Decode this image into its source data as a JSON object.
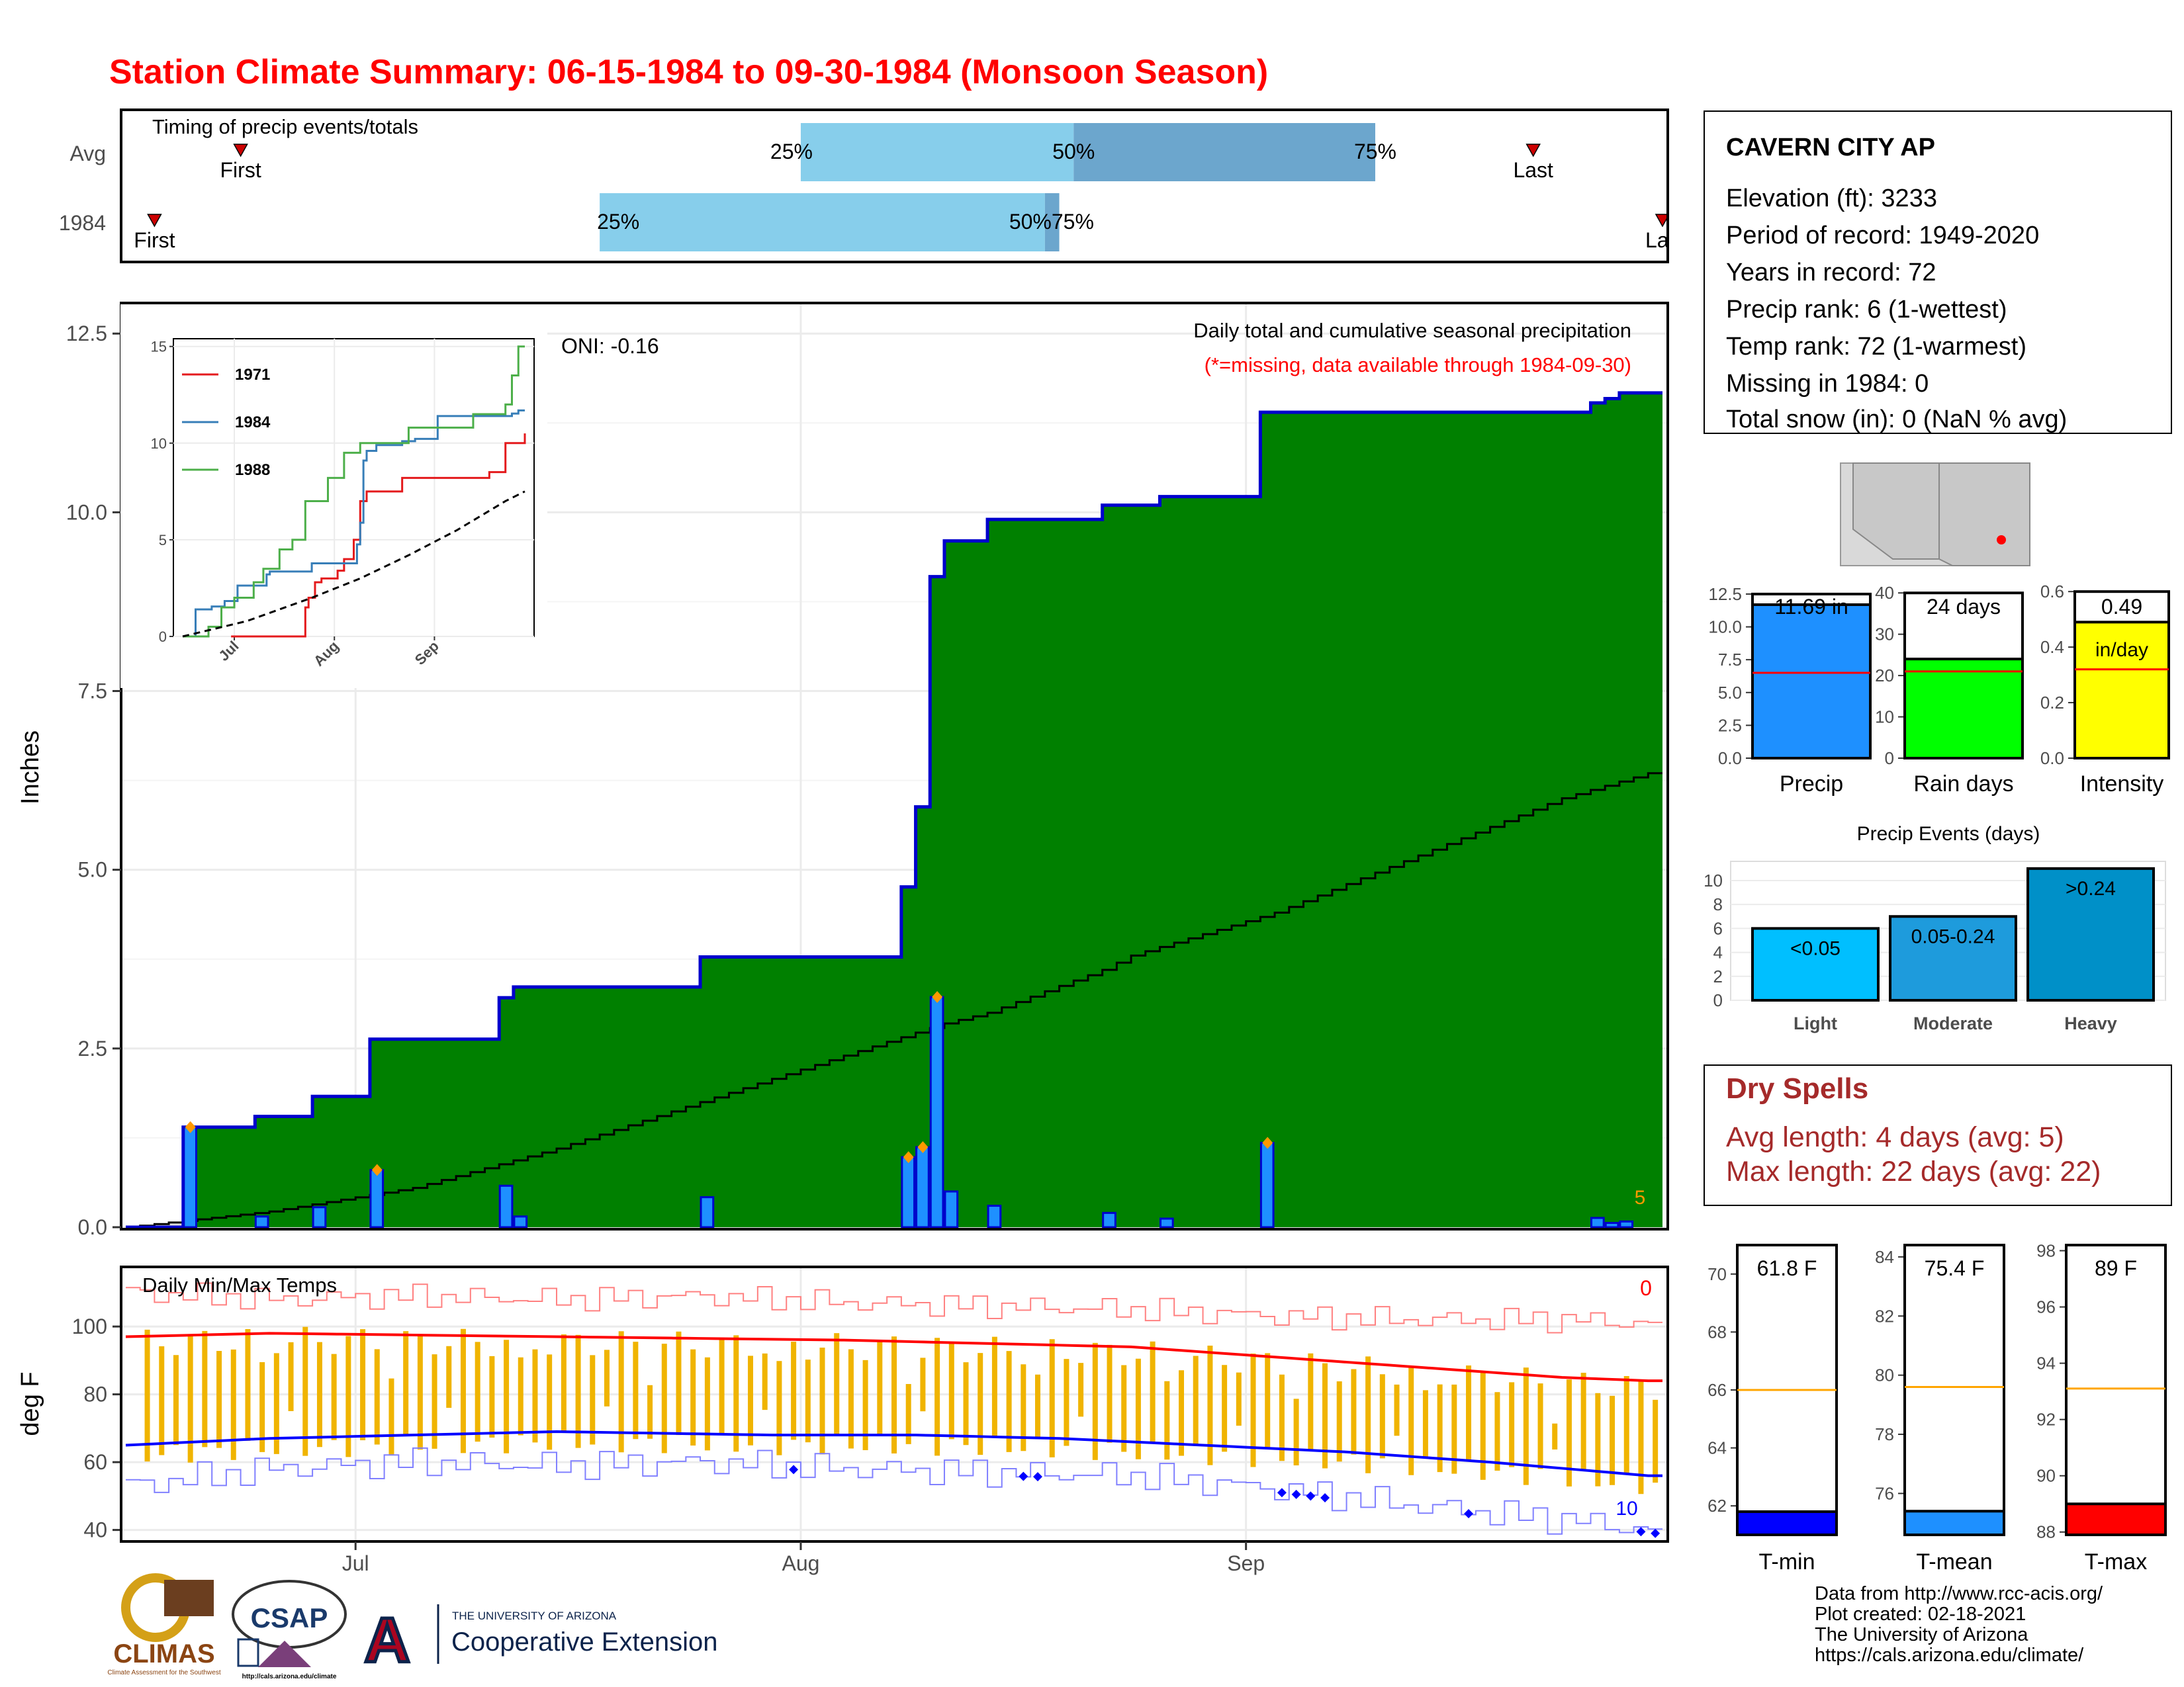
{
  "title": "Station Climate Summary: 06-15-1984 to 09-30-1984 (Monsoon Season)",
  "timing_panel": {
    "label": "Timing of precip events/totals",
    "rows": [
      "Avg",
      "1984"
    ],
    "avg": {
      "first_day": 8,
      "q25_day": 47,
      "q50_day": 66,
      "q75_day": 87,
      "last_day": 98
    },
    "year": {
      "first_day": 2,
      "q25_day": 33,
      "q50_day": 64,
      "q75_day": 65,
      "last_day": 107
    },
    "labels": {
      "first": "First",
      "last": "Last",
      "last_cut": "La",
      "q25": "25%",
      "q50": "50%",
      "q75": "75%",
      "year_q50q75": "50%75%"
    }
  },
  "main": {
    "ylabel": "Inches",
    "yticks": [
      "0.0",
      "2.5",
      "5.0",
      "7.5",
      "10.0",
      "12.5"
    ],
    "ylim": [
      0,
      12.9
    ],
    "xticks": [
      {
        "day": 16,
        "label": "Jul"
      },
      {
        "day": 47,
        "label": "Aug"
      },
      {
        "day": 78,
        "label": "Sep"
      }
    ],
    "oni": "ONI: -0.16",
    "caption": "Daily total and cumulative seasonal precipitation",
    "missing_note": "(*=missing, data available through 1984-09-30)",
    "corner_label": "5",
    "colors": {
      "cumulative": "#008000",
      "outline": "#0000CD",
      "avg": "#DCDCDC",
      "bars": "#1E90FF",
      "marker": "#FF9900"
    }
  },
  "chart_data": [
    {
      "type": "area",
      "name": "cumulative",
      "x_unit": "day of season (0 = Jun 15)",
      "daily_precip": [
        {
          "day": 4,
          "in": 1.4
        },
        {
          "day": 9,
          "in": 0.15
        },
        {
          "day": 13,
          "in": 0.28
        },
        {
          "day": 17,
          "in": 0.8
        },
        {
          "day": 26,
          "in": 0.58
        },
        {
          "day": 27,
          "in": 0.15
        },
        {
          "day": 40,
          "in": 0.42
        },
        {
          "day": 54,
          "in": 0.98
        },
        {
          "day": 55,
          "in": 1.12
        },
        {
          "day": 56,
          "in": 3.22
        },
        {
          "day": 57,
          "in": 0.5
        },
        {
          "day": 60,
          "in": 0.3
        },
        {
          "day": 68,
          "in": 0.2
        },
        {
          "day": 72,
          "in": 0.12
        },
        {
          "day": 79,
          "in": 1.18
        },
        {
          "day": 102,
          "in": 0.13
        },
        {
          "day": 103,
          "in": 0.06
        },
        {
          "day": 104,
          "in": 0.08
        }
      ],
      "avg_cumulative": [
        [
          0,
          0
        ],
        [
          10,
          0.22
        ],
        [
          20,
          0.55
        ],
        [
          30,
          1.1
        ],
        [
          40,
          1.75
        ],
        [
          50,
          2.4
        ],
        [
          57,
          2.85
        ],
        [
          60,
          3.0
        ],
        [
          68,
          3.6
        ],
        [
          70,
          3.8
        ],
        [
          80,
          4.4
        ],
        [
          90,
          5.2
        ],
        [
          100,
          6.0
        ],
        [
          106,
          6.35
        ]
      ],
      "inset_series": [
        {
          "name": "1971",
          "color": "#E41A1C",
          "points": [
            [
              15,
              0
            ],
            [
              36,
              0
            ],
            [
              38,
              1.5
            ],
            [
              39,
              2
            ],
            [
              41,
              2.8
            ],
            [
              43,
              3
            ],
            [
              48,
              3.4
            ],
            [
              50,
              4
            ],
            [
              53,
              5
            ],
            [
              55,
              7
            ],
            [
              57,
              7.5
            ],
            [
              68,
              8.2
            ],
            [
              95,
              8.5
            ],
            [
              100,
              10
            ],
            [
              106,
              10.5
            ]
          ]
        },
        {
          "name": "1984",
          "color": "#377EB8",
          "points": [
            [
              0,
              0
            ],
            [
              4,
              1.4
            ],
            [
              9,
              1.55
            ],
            [
              13,
              1.83
            ],
            [
              17,
              2.63
            ],
            [
              26,
              3.21
            ],
            [
              27,
              3.36
            ],
            [
              40,
              3.78
            ],
            [
              54,
              4.76
            ],
            [
              55,
              5.88
            ],
            [
              56,
              9.1
            ],
            [
              57,
              9.6
            ],
            [
              60,
              9.9
            ],
            [
              68,
              10.1
            ],
            [
              72,
              10.22
            ],
            [
              79,
              11.4
            ],
            [
              102,
              11.53
            ],
            [
              104,
              11.69
            ],
            [
              106,
              11.69
            ]
          ]
        },
        {
          "name": "1988",
          "color": "#4DAF4A",
          "points": [
            [
              0,
              0
            ],
            [
              8,
              0.5
            ],
            [
              12,
              1.5
            ],
            [
              16,
              2
            ],
            [
              22,
              2.8
            ],
            [
              25,
              3.5
            ],
            [
              30,
              4.5
            ],
            [
              34,
              5
            ],
            [
              38,
              7
            ],
            [
              45,
              8.2
            ],
            [
              50,
              9.5
            ],
            [
              55,
              10
            ],
            [
              70,
              10.8
            ],
            [
              90,
              11.5
            ],
            [
              100,
              12
            ],
            [
              102,
              13.5
            ],
            [
              104,
              15
            ],
            [
              106,
              15
            ]
          ]
        }
      ],
      "inset_avg": [
        [
          0,
          0
        ],
        [
          20,
          0.8
        ],
        [
          40,
          2
        ],
        [
          55,
          3
        ],
        [
          70,
          4.2
        ],
        [
          85,
          5.5
        ],
        [
          100,
          7
        ],
        [
          106,
          7.5
        ]
      ],
      "inset_yticks": [
        "0",
        "5",
        "10",
        "15"
      ],
      "inset_xticks": [
        "Jul",
        "Aug",
        "Sep"
      ]
    },
    {
      "type": "bar",
      "name": "season-totals",
      "categories": [
        "Precip",
        "Rain days",
        "Intensity"
      ],
      "values": [
        11.69,
        24,
        0.49
      ],
      "avg_lines": [
        6.5,
        21,
        0.32
      ],
      "ymax": [
        12.5,
        40,
        0.6
      ],
      "ylims": [
        12.9,
        41,
        0.61
      ],
      "yticks": [
        [
          "0.0",
          "2.5",
          "5.0",
          "7.5",
          "10.0",
          "12.5"
        ],
        [
          "0",
          "10",
          "20",
          "30",
          "40"
        ],
        [
          "0.0",
          "0.2",
          "0.4",
          "0.6"
        ]
      ],
      "value_labels": [
        "11.69 in",
        "24 days",
        "0.49"
      ],
      "unit_labels": [
        "",
        "",
        "in/day"
      ],
      "colors": [
        "#1E90FF",
        "#00FF00",
        "#FFFF00"
      ]
    },
    {
      "type": "bar",
      "name": "precip-events",
      "title": "Precip Events (days)",
      "categories": [
        "Light",
        "Moderate",
        "Heavy"
      ],
      "values": [
        6,
        7,
        11
      ],
      "bar_labels": [
        "<0.05",
        "0.05-0.24",
        ">0.24"
      ],
      "yticks": [
        "0",
        "2",
        "4",
        "6",
        "8",
        "10"
      ],
      "colors": [
        "#00BFFF",
        "#1E9BDC",
        "#0090C8"
      ]
    },
    {
      "type": "line",
      "name": "daily-temps",
      "label": "Daily Min/Max Temps",
      "ylabel": "deg F",
      "yticks": [
        "40",
        "60",
        "80",
        "100"
      ],
      "ylim": [
        37,
        117
      ],
      "corner_max_label": "0",
      "corner_min_label": "10",
      "avg_max": [
        [
          0,
          97
        ],
        [
          10,
          98
        ],
        [
          30,
          97
        ],
        [
          50,
          96
        ],
        [
          60,
          95
        ],
        [
          70,
          94
        ],
        [
          80,
          91
        ],
        [
          90,
          88
        ],
        [
          100,
          85
        ],
        [
          106,
          84
        ]
      ],
      "avg_min": [
        [
          0,
          65
        ],
        [
          10,
          67
        ],
        [
          20,
          68
        ],
        [
          30,
          69
        ],
        [
          45,
          68
        ],
        [
          55,
          68
        ],
        [
          65,
          67
        ],
        [
          75,
          65
        ],
        [
          85,
          63
        ],
        [
          95,
          60
        ],
        [
          106,
          56
        ]
      ],
      "record_max": [
        [
          0,
          110
        ],
        [
          10,
          108
        ],
        [
          20,
          109
        ],
        [
          30,
          108
        ],
        [
          40,
          109
        ],
        [
          50,
          107
        ],
        [
          60,
          106
        ],
        [
          70,
          105
        ],
        [
          80,
          103
        ],
        [
          90,
          102
        ],
        [
          100,
          102
        ],
        [
          106,
          101
        ]
      ],
      "record_min": [
        [
          0,
          53
        ],
        [
          10,
          58
        ],
        [
          20,
          60
        ],
        [
          30,
          59
        ],
        [
          40,
          60
        ],
        [
          50,
          58
        ],
        [
          60,
          57
        ],
        [
          70,
          56
        ],
        [
          80,
          52
        ],
        [
          90,
          47
        ],
        [
          100,
          43
        ],
        [
          106,
          40
        ]
      ],
      "below_record_min_days": [
        46,
        62,
        63,
        80,
        81,
        82,
        83,
        93,
        105,
        106
      ],
      "colors": {
        "range": "#F0B400",
        "max": "#FF0000",
        "min": "#0000FF",
        "record_max": "#FF8080",
        "record_min": "#8080FF"
      }
    },
    {
      "type": "bar",
      "name": "temp-summary",
      "categories": [
        "T-min",
        "T-mean",
        "T-max"
      ],
      "values": [
        61.8,
        75.4,
        89
      ],
      "avg_lines": [
        66,
        79.6,
        93.1
      ],
      "ranges": [
        [
          61,
          71
        ],
        [
          74.6,
          84.4
        ],
        [
          87.9,
          98.2
        ]
      ],
      "yticks": [
        [
          "62",
          "64",
          "66",
          "68",
          "70"
        ],
        [
          "76",
          "78",
          "80",
          "82",
          "84"
        ],
        [
          "88",
          "90",
          "92",
          "94",
          "96",
          "98"
        ]
      ],
      "value_labels": [
        "61.8 F",
        "75.4 F",
        "89 F"
      ],
      "colors": [
        "#0000FF",
        "#1E90FF",
        "#FF0000"
      ]
    }
  ],
  "station": {
    "name": "CAVERN CITY AP",
    "lines": [
      "Elevation (ft): 3233",
      "Period of record: 1949-2020",
      "Years in record: 72",
      "Precip rank: 6 (1-wettest)",
      "Temp rank: 72 (1-warmest)",
      "Missing in 1984: 0",
      "Total snow (in): 0 (NaN % avg)"
    ]
  },
  "dry_spells": {
    "title": "Dry Spells",
    "lines": [
      "Avg length: 4 days (avg: 5)",
      "Max length: 22 days (avg: 22)"
    ],
    "color": "#A52A2A"
  },
  "footer": {
    "credits": [
      "Data from http://www.rcc-acis.org/",
      "Plot created: 02-18-2021",
      "The University of Arizona",
      "https://cals.arizona.edu/climate/"
    ],
    "logo_climas": "CLIMAS",
    "logo_climas_sub": "Climate Assessment for the Southwest",
    "logo_csap": "CSAP",
    "logo_csap_url": "http://cals.arizona.edu/climate",
    "logo_ua_letter": "A",
    "logo_ua_line1": "THE UNIVERSITY OF ARIZONA",
    "logo_ua_line2": "Cooperative Extension"
  }
}
